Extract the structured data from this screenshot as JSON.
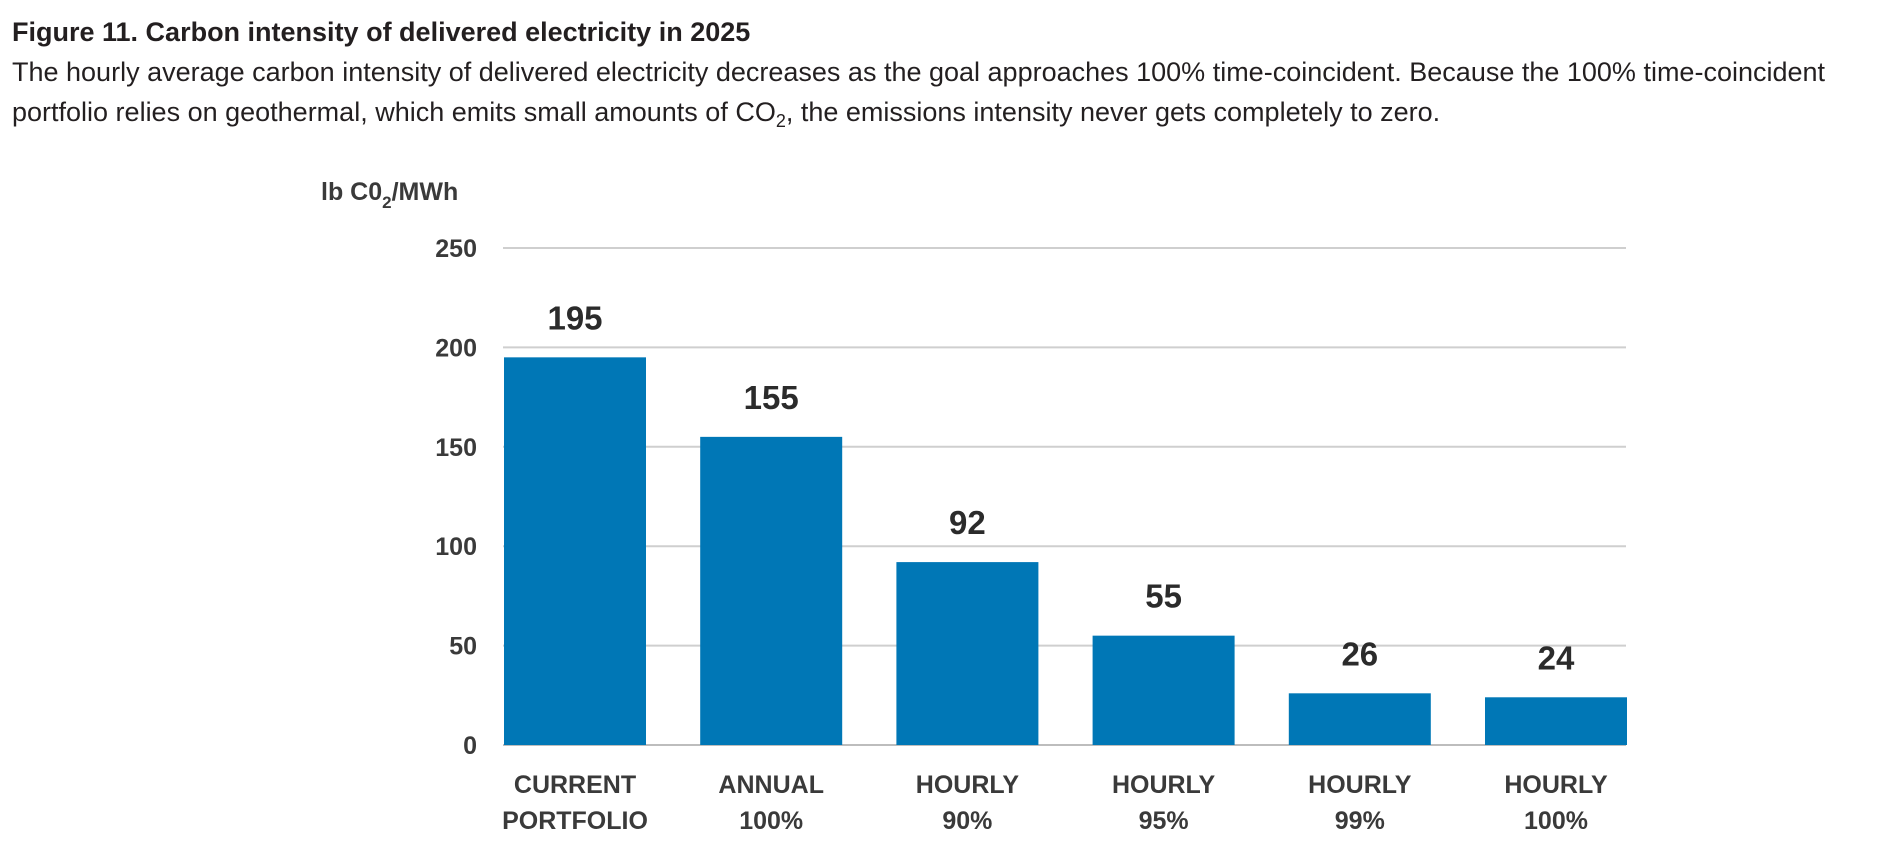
{
  "figure": {
    "title": "Figure 11. Carbon intensity of delivered electricity in 2025",
    "subtitle_part1": "The hourly average carbon intensity of delivered electricity decreases as the goal approaches 100% time-coincident. Because the 100% time-coincident portfolio relies on geothermal, which emits small amounts of CO",
    "subtitle_sub": "2",
    "subtitle_part2": ", the emissions intensity never gets completely to zero."
  },
  "colors": {
    "bar": "#0077b6",
    "grid": "#cfcfcf",
    "text": "#3a3a3a"
  },
  "chart_data": {
    "type": "bar",
    "title": "Figure 11. Carbon intensity of delivered electricity in 2025",
    "ylabel_main": "lb C0",
    "ylabel_sub": "2",
    "ylabel_tail": "/MWh",
    "xlabel": "",
    "categories": [
      [
        "CURRENT",
        "PORTFOLIO"
      ],
      [
        "ANNUAL",
        "100%"
      ],
      [
        "HOURLY",
        "90%"
      ],
      [
        "HOURLY",
        "95%"
      ],
      [
        "HOURLY",
        "99%"
      ],
      [
        "HOURLY",
        "100%"
      ]
    ],
    "values": [
      195,
      155,
      92,
      55,
      26,
      24
    ],
    "data_labels": [
      "195",
      "155",
      "92",
      "55",
      "26",
      "24"
    ],
    "ylim": [
      0,
      250
    ],
    "yticks": [
      0,
      50,
      100,
      150,
      200,
      250
    ],
    "grid": true,
    "legend": "none"
  }
}
